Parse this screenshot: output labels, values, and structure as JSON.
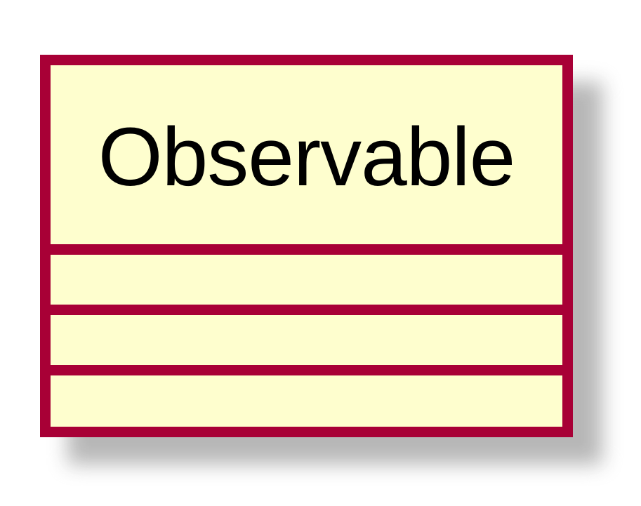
{
  "diagram": {
    "type": "uml-class",
    "class": {
      "name": "Observable",
      "compartments": [
        {
          "kind": "fields",
          "items": []
        },
        {
          "kind": "methods",
          "items": []
        },
        {
          "kind": "extra",
          "items": []
        }
      ]
    },
    "colors": {
      "border": "#a80036",
      "fill": "#fefece",
      "shadow": "#b4b4b4",
      "text": "#000000",
      "background": "#ffffff"
    }
  }
}
